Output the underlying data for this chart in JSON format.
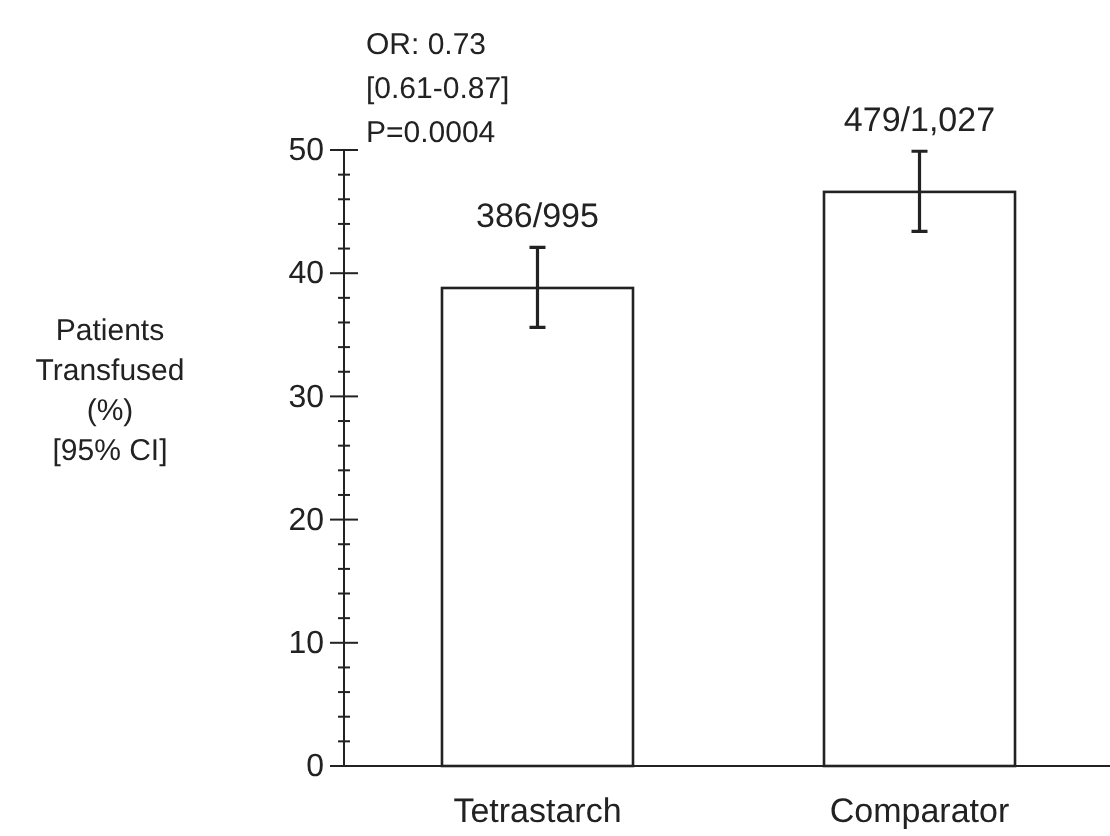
{
  "chart_data": {
    "type": "bar",
    "categories": [
      "Tetrastarch",
      "Comparator"
    ],
    "values": [
      38.8,
      46.6
    ],
    "errors": [
      [
        35.6,
        42.1
      ],
      [
        43.4,
        49.9
      ]
    ],
    "color": "#ffffff",
    "value_labels": [
      "386/995",
      "479/1,027"
    ],
    "ylabel": "Patients\nTransfused\n(%)\n[95% CI]",
    "ylim": [
      0,
      50
    ],
    "yticks": [
      0,
      {
        "value": 2,
        "label": null
      },
      {
        "value": 4,
        "label": null
      },
      {
        "value": 6,
        "label": null
      },
      {
        "value": 8,
        "label": null
      },
      10,
      {
        "value": 12,
        "label": null
      },
      {
        "value": 14,
        "label": null
      },
      {
        "value": 16,
        "label": null
      },
      {
        "value": 18,
        "label": null
      },
      20,
      {
        "value": 22,
        "label": null
      },
      {
        "value": 24,
        "label": null
      },
      {
        "value": 26,
        "label": null
      },
      {
        "value": 28,
        "label": null
      },
      30,
      {
        "value": 32,
        "label": null
      },
      {
        "value": 34,
        "label": null
      },
      {
        "value": 36,
        "label": null
      },
      {
        "value": 38,
        "label": null
      },
      40,
      {
        "value": 42,
        "label": null
      },
      {
        "value": 44,
        "label": null
      },
      {
        "value": 46,
        "label": null
      },
      {
        "value": 48,
        "label": null
      },
      50
    ],
    "annotations": [
      "OR: 0.73",
      "[0.61-0.87]",
      "P=0.0004"
    ],
    "grid": false
  }
}
